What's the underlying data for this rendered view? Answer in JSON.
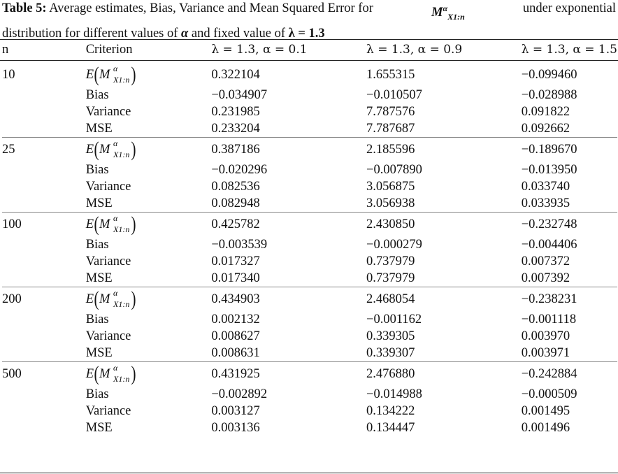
{
  "caption": {
    "label": "Table 5:",
    "text_part1": "Average estimates, Bias, Variance and Mean Squared Error for",
    "estimator_symbol": "M",
    "estimator_sup": "α",
    "estimator_sub": "X1:n",
    "text_part2": "under exponential",
    "text_part3": "distribution for different values of",
    "alpha_symbol": "α",
    "text_part4": "and fixed value of",
    "lambda_fixed": "λ = 1.3"
  },
  "table": {
    "headers": [
      "n",
      "Criterion",
      "λ = 1.3, α = 0.1",
      "λ = 1.3, α = 0.9",
      "λ = 1.3, α = 1.5"
    ],
    "estimate_label": {
      "E": "E",
      "M": "M",
      "sup": "α",
      "sub": "X1:n"
    },
    "groups": [
      {
        "n": "10",
        "rows": [
          {
            "criterion": "E",
            "values": [
              "0.322104",
              "1.655315",
              "−0.099460"
            ]
          },
          {
            "criterion": "Bias",
            "values": [
              "−0.034907",
              "−0.010507",
              "−0.028988"
            ]
          },
          {
            "criterion": "Variance",
            "values": [
              "0.231985",
              "7.787576",
              "0.091822"
            ]
          },
          {
            "criterion": "MSE",
            "values": [
              "0.233204",
              "7.787687",
              "0.092662"
            ]
          }
        ]
      },
      {
        "n": "25",
        "rows": [
          {
            "criterion": "E",
            "values": [
              "0.387186",
              "2.185596",
              "−0.189670"
            ]
          },
          {
            "criterion": "Bias",
            "values": [
              "−0.020296",
              "−0.007890",
              "−0.013950"
            ]
          },
          {
            "criterion": "Variance",
            "values": [
              "0.082536",
              "3.056875",
              "0.033740"
            ]
          },
          {
            "criterion": "MSE",
            "values": [
              "0.082948",
              "3.056938",
              "0.033935"
            ]
          }
        ]
      },
      {
        "n": "100",
        "rows": [
          {
            "criterion": "E",
            "values": [
              "0.425782",
              "2.430850",
              "−0.232748"
            ]
          },
          {
            "criterion": "Bias",
            "values": [
              "−0.003539",
              "−0.000279",
              "−0.004406"
            ]
          },
          {
            "criterion": "Variance",
            "values": [
              "0.017327",
              "0.737979",
              "0.007372"
            ]
          },
          {
            "criterion": "MSE",
            "values": [
              "0.017340",
              "0.737979",
              "0.007392"
            ]
          }
        ]
      },
      {
        "n": "200",
        "rows": [
          {
            "criterion": "E",
            "values": [
              "0.434903",
              "2.468054",
              "−0.238231"
            ]
          },
          {
            "criterion": "Bias",
            "values": [
              "0.002132",
              "−0.001162",
              "−0.001118"
            ]
          },
          {
            "criterion": "Variance",
            "values": [
              "0.008627",
              "0.339305",
              "0.003970"
            ]
          },
          {
            "criterion": "MSE",
            "values": [
              "0.008631",
              "0.339307",
              "0.003971"
            ]
          }
        ]
      },
      {
        "n": "500",
        "rows": [
          {
            "criterion": "E",
            "values": [
              "0.431925",
              "2.476880",
              "−0.242884"
            ]
          },
          {
            "criterion": "Bias",
            "values": [
              "−0.002892",
              "−0.014988",
              "−0.000509"
            ]
          },
          {
            "criterion": "Variance",
            "values": [
              "0.003127",
              "0.134222",
              "0.001495"
            ]
          },
          {
            "criterion": "MSE",
            "values": [
              "0.003136",
              "0.134447",
              "0.001496"
            ]
          }
        ]
      }
    ]
  }
}
